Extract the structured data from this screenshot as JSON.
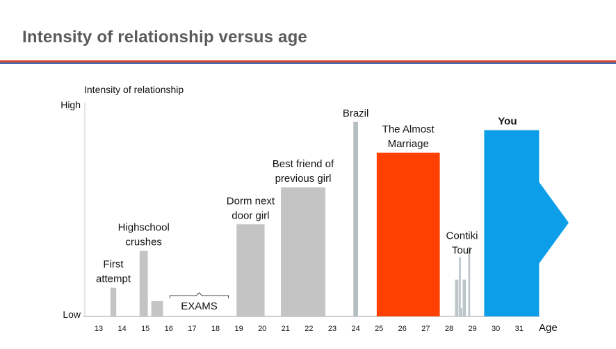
{
  "page": {
    "title": "Intensity of relationship versus age"
  },
  "chart_data": {
    "type": "bar",
    "title": "Intensity of relationship versus age",
    "xlabel": "Age",
    "ylabel": "Intensity of relationship",
    "y_low_label": "Low",
    "y_high_label": "High",
    "xlim": [
      12.5,
      31.85
    ],
    "ylim": [
      0,
      100
    ],
    "x_ticks": [
      "13",
      "14",
      "15",
      "16",
      "17",
      "18",
      "19",
      "20",
      "21",
      "22",
      "23",
      "24",
      "25",
      "26",
      "27",
      "28",
      "29",
      "30",
      "31"
    ],
    "bars": [
      {
        "name": "First attempt",
        "label_lines": [
          "First",
          "attempt"
        ],
        "start": 13.5,
        "end": 13.75,
        "value": 14,
        "color": "#c4c4c4",
        "bold": false
      },
      {
        "name": "Highschool crushes",
        "label_lines": [
          "Highschool",
          "crushes"
        ],
        "start": 14.75,
        "end": 15.1,
        "value": 32,
        "color": "#c4c4c4",
        "bold": false
      },
      {
        "name": "Highschool crush 2",
        "label_lines": [],
        "start": 15.25,
        "end": 15.75,
        "value": 7.5,
        "color": "#c4c4c4",
        "bold": false
      },
      {
        "name": "Dorm next door girl",
        "label_lines": [
          "Dorm next",
          "door girl"
        ],
        "start": 18.9,
        "end": 20.1,
        "value": 45,
        "color": "#c4c4c4",
        "bold": false
      },
      {
        "name": "Best friend of previous girl",
        "label_lines": [
          "Best friend of",
          "previous girl"
        ],
        "start": 20.8,
        "end": 22.7,
        "value": 63,
        "color": "#c4c4c4",
        "bold": false
      },
      {
        "name": "Brazil",
        "label_lines": [
          "Brazil"
        ],
        "start": 23.9,
        "end": 24.1,
        "value": 95,
        "color": "#b5bec1",
        "bold": false
      },
      {
        "name": "The Almost Marriage",
        "label_lines": [
          "The Almost",
          "Marriage"
        ],
        "start": 24.9,
        "end": 27.6,
        "value": 80,
        "color": "#ff4000",
        "bold": false
      },
      {
        "name": "Contiki Tour",
        "label_lines": [
          "Contiki",
          "Tour"
        ],
        "start": 28.2,
        "end": 28.9,
        "value": 28,
        "color": "#bcc6ca",
        "bold": false
      },
      {
        "name": "You",
        "label_lines": [
          "You"
        ],
        "start": 29.5,
        "end": 31.85,
        "value": 91,
        "color": "#0c9ee8",
        "bold": true
      }
    ],
    "contiki_detail": [
      {
        "start": 28.25,
        "end": 28.4,
        "value": 18
      },
      {
        "start": 28.42,
        "end": 28.5,
        "value": 29
      },
      {
        "start": 28.48,
        "end": 28.56,
        "value": 4
      },
      {
        "start": 28.58,
        "end": 28.72,
        "value": 18
      },
      {
        "start": 28.82,
        "end": 28.9,
        "value": 34
      }
    ],
    "annotation": {
      "text": "EXAMS",
      "start": 16.05,
      "end": 18.55
    }
  }
}
